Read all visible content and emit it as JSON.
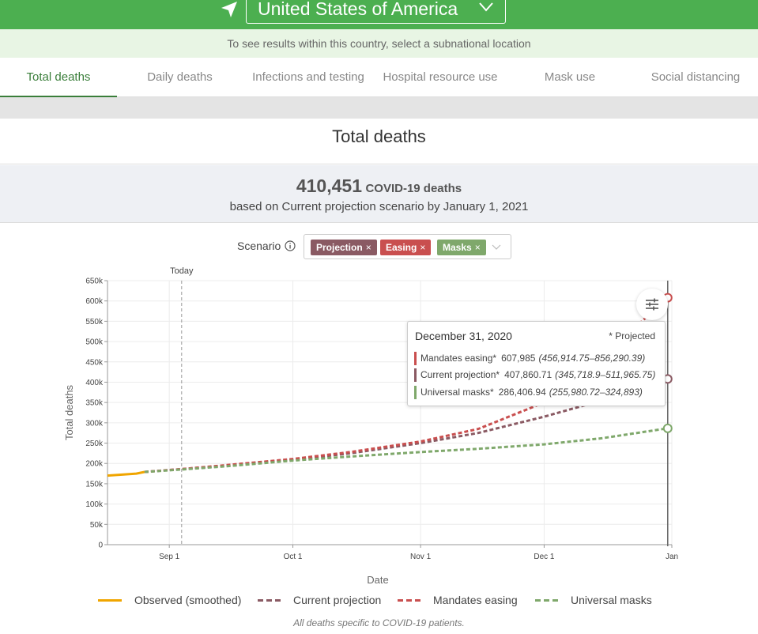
{
  "header": {
    "country": "United States of America",
    "hint": "To see results within this country, select a subnational location"
  },
  "tabs": [
    {
      "label": "Total deaths",
      "active": true
    },
    {
      "label": "Daily deaths",
      "active": false
    },
    {
      "label": "Infections and testing",
      "active": false
    },
    {
      "label": "Hospital resource use",
      "active": false
    },
    {
      "label": "Mask use",
      "active": false
    },
    {
      "label": "Social distancing",
      "active": false
    }
  ],
  "page_title": "Total deaths",
  "summary": {
    "count": "410,451",
    "unit": "COVID-19 deaths",
    "subtitle": "based on Current projection scenario by January 1, 2021"
  },
  "scenario": {
    "label": "Scenario",
    "chips": [
      {
        "label": "Projection",
        "color": "#8a5a63"
      },
      {
        "label": "Easing",
        "color": "#c94f4f"
      },
      {
        "label": "Masks",
        "color": "#7fa86b"
      }
    ],
    "remove_glyph": "×"
  },
  "tooltip": {
    "date": "December 31, 2020",
    "note": "* Projected",
    "rows": [
      {
        "name": "Mandates easing*",
        "value": "607,985",
        "ci": "(456,914.75–856,290.39)",
        "color": "#c94f4f"
      },
      {
        "name": "Current projection*",
        "value": "407,860.71",
        "ci": "(345,718.9–511,965.75)",
        "color": "#8a5a63"
      },
      {
        "name": "Universal masks*",
        "value": "286,406.94",
        "ci": "(255,980.72–324,893)",
        "color": "#7fa86b"
      }
    ]
  },
  "legend": [
    {
      "label": "Observed (smoothed)",
      "color": "#f0a500",
      "dashed": false
    },
    {
      "label": "Current projection",
      "color": "#8a5a63",
      "dashed": true
    },
    {
      "label": "Mandates easing",
      "color": "#c94f4f",
      "dashed": true
    },
    {
      "label": "Universal masks",
      "color": "#7fa86b",
      "dashed": true
    }
  ],
  "footnote": "All deaths specific to COVID-19 patients.",
  "chart_data": {
    "type": "line",
    "title": "Total deaths",
    "xlabel": "Date",
    "ylabel": "Total deaths",
    "ylim": [
      0,
      650000
    ],
    "yticks": [
      "0",
      "50k",
      "100k",
      "150k",
      "200k",
      "250k",
      "300k",
      "350k",
      "400k",
      "450k",
      "500k",
      "550k",
      "600k",
      "650k"
    ],
    "xticks": [
      {
        "date": "2020-09-01",
        "label": "Sep 1"
      },
      {
        "date": "2020-10-01",
        "label": "Oct 1"
      },
      {
        "date": "2020-11-01",
        "label": "Nov 1"
      },
      {
        "date": "2020-12-01",
        "label": "Dec 1"
      },
      {
        "date": "2021-01-01",
        "label": "Jan"
      }
    ],
    "xrange": [
      "2020-08-17",
      "2021-01-01"
    ],
    "today": {
      "date": "2020-09-04",
      "label": "Today"
    },
    "hover_date": "2020-12-31",
    "grid": true,
    "series": [
      {
        "name": "Observed (smoothed)",
        "color": "#f0a500",
        "dashed": false,
        "points": [
          [
            "2020-08-17",
            170000
          ],
          [
            "2020-08-24",
            175000
          ],
          [
            "2020-08-26",
            179000
          ]
        ]
      },
      {
        "name": "Current projection",
        "color": "#8a5a63",
        "dashed": true,
        "points": [
          [
            "2020-08-26",
            179000
          ],
          [
            "2020-09-04",
            186000
          ],
          [
            "2020-09-15",
            195000
          ],
          [
            "2020-10-01",
            209000
          ],
          [
            "2020-10-15",
            225000
          ],
          [
            "2020-11-01",
            250000
          ],
          [
            "2020-11-15",
            275000
          ],
          [
            "2020-12-01",
            315000
          ],
          [
            "2020-12-15",
            355000
          ],
          [
            "2020-12-31",
            407860
          ]
        ]
      },
      {
        "name": "Mandates easing",
        "color": "#c94f4f",
        "dashed": true,
        "points": [
          [
            "2020-08-26",
            179000
          ],
          [
            "2020-09-04",
            186000
          ],
          [
            "2020-09-15",
            196000
          ],
          [
            "2020-10-01",
            211000
          ],
          [
            "2020-10-15",
            228000
          ],
          [
            "2020-11-01",
            254000
          ],
          [
            "2020-11-15",
            285000
          ],
          [
            "2020-12-01",
            350000
          ],
          [
            "2020-12-15",
            460000
          ],
          [
            "2020-12-31",
            607985
          ]
        ]
      },
      {
        "name": "Universal masks",
        "color": "#7fa86b",
        "dashed": true,
        "points": [
          [
            "2020-08-26",
            179000
          ],
          [
            "2020-09-04",
            185000
          ],
          [
            "2020-09-15",
            193000
          ],
          [
            "2020-10-01",
            207000
          ],
          [
            "2020-10-15",
            217000
          ],
          [
            "2020-11-01",
            228000
          ],
          [
            "2020-11-15",
            236000
          ],
          [
            "2020-12-01",
            247000
          ],
          [
            "2020-12-15",
            262000
          ],
          [
            "2020-12-31",
            286407
          ]
        ]
      }
    ]
  }
}
